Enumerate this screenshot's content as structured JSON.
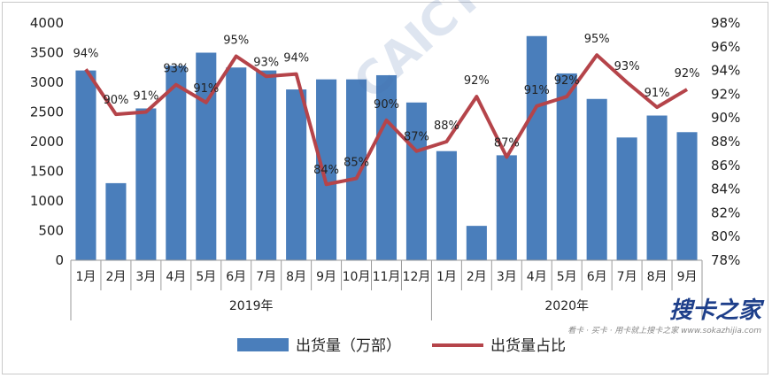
{
  "chart_data": {
    "type": "bar+line",
    "categories": [
      "1月",
      "2月",
      "3月",
      "4月",
      "5月",
      "6月",
      "7月",
      "8月",
      "9月",
      "10月",
      "11月",
      "12月",
      "1月",
      "2月",
      "3月",
      "4月",
      "5月",
      "6月",
      "7月",
      "8月",
      "9月"
    ],
    "groups": [
      {
        "label": "2019年",
        "count": 12
      },
      {
        "label": "2020年",
        "count": 9
      }
    ],
    "series": [
      {
        "name": "出货量（万部）",
        "type": "bar",
        "axis": "left",
        "color": "#4a7ebb",
        "values": [
          3200,
          1300,
          2560,
          3280,
          3500,
          3250,
          3200,
          2880,
          3050,
          3050,
          3120,
          2660,
          1840,
          580,
          1770,
          3780,
          3150,
          2720,
          2070,
          2440,
          2160
        ]
      },
      {
        "name": "出货量占比",
        "type": "line",
        "axis": "right",
        "color": "#b5444a",
        "values": [
          94.1,
          90.3,
          90.5,
          92.8,
          91.3,
          95.2,
          93.5,
          93.7,
          84.4,
          84.9,
          89.8,
          87.2,
          88.0,
          91.8,
          86.7,
          91.0,
          91.8,
          95.3,
          93.0,
          90.9,
          92.4
        ],
        "labels": [
          "94%",
          "90%",
          "91%",
          "93%",
          "91%",
          "95%",
          "93%",
          "94%",
          "84%",
          "85%",
          "90%",
          "87%",
          "88%",
          "92%",
          "87%",
          "91%",
          "92%",
          "95%",
          "93%",
          "91%",
          "92%"
        ]
      }
    ],
    "y_left": {
      "min": 0,
      "max": 4000,
      "ticks": [
        "0",
        "500",
        "1000",
        "1500",
        "2000",
        "2500",
        "3000",
        "3500",
        "4000"
      ]
    },
    "y_right": {
      "min": 78,
      "max": 98,
      "ticks": [
        "78%",
        "80%",
        "82%",
        "84%",
        "86%",
        "88%",
        "90%",
        "92%",
        "94%",
        "96%",
        "98%"
      ]
    },
    "legend": {
      "position": "bottom",
      "bar": "出货量（万部）",
      "line": "出货量占比"
    },
    "grid": false
  },
  "watermark": {
    "text": "CAICT中国信通院",
    "brand": "搜卡之家",
    "url": "看卡 · 买卡 · 用卡就上搜卡之家 www.sokazhijia.com"
  }
}
